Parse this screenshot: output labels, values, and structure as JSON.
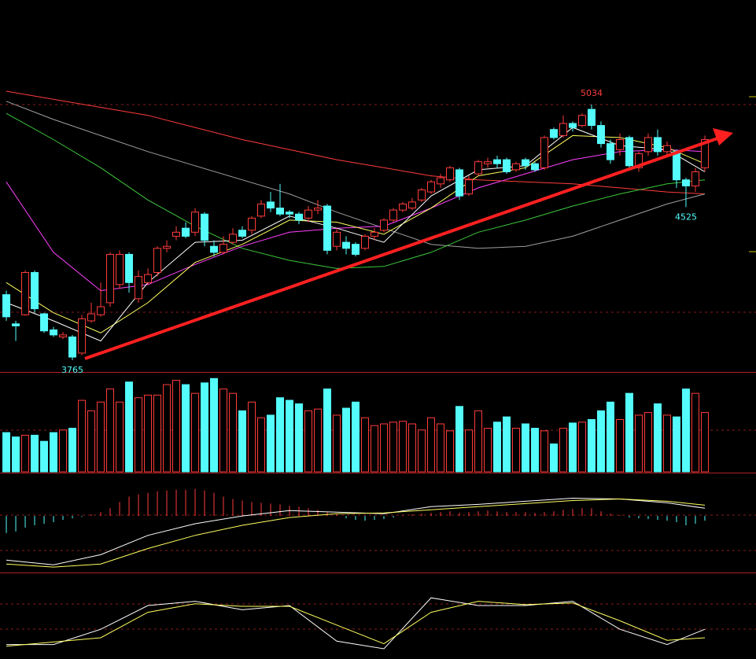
{
  "chart_data": {
    "type": "candlestick",
    "xlim": [
      -0.67,
      79.42
    ],
    "x": [
      0,
      1,
      2,
      3,
      4,
      5,
      6,
      7,
      8,
      9,
      10,
      11,
      12,
      13,
      14,
      15,
      16,
      17,
      18,
      19,
      20,
      21,
      22,
      23,
      24,
      25,
      26,
      27,
      28,
      29,
      30,
      31,
      32,
      33,
      34,
      35,
      36,
      37,
      38,
      39,
      40,
      41,
      42,
      43,
      44,
      45,
      46,
      47,
      48,
      49,
      50,
      51,
      52,
      53,
      54,
      55,
      56,
      57,
      58,
      59,
      60,
      61,
      62,
      63,
      64,
      65,
      66,
      67,
      68,
      69,
      70,
      71,
      72,
      73,
      74
    ],
    "ylim": [
      3710,
      5553
    ],
    "open": [
      4090,
      3945,
      3990,
      4200,
      3995,
      3915,
      3880,
      3880,
      3800,
      3960,
      3990,
      4050,
      4140,
      4290,
      4070,
      4150,
      4200,
      4320,
      4380,
      4420,
      4400,
      4490,
      4330,
      4300,
      4350,
      4410,
      4410,
      4480,
      4550,
      4520,
      4500,
      4490,
      4470,
      4510,
      4530,
      4330,
      4350,
      4340,
      4320,
      4380,
      4410,
      4460,
      4510,
      4520,
      4560,
      4600,
      4640,
      4660,
      4710,
      4590,
      4690,
      4740,
      4760,
      4760,
      4710,
      4760,
      4740,
      4720,
      4910,
      4880,
      4940,
      4930,
      5010,
      4930,
      4840,
      4810,
      4870,
      4720,
      4800,
      4870,
      4800,
      4800,
      4660,
      4630,
      4720
    ],
    "high": [
      4110,
      3960,
      4210,
      4210,
      4000,
      3930,
      3905,
      3890,
      3990,
      4050,
      4150,
      4300,
      4310,
      4300,
      4210,
      4220,
      4330,
      4360,
      4430,
      4450,
      4520,
      4500,
      4360,
      4380,
      4420,
      4430,
      4480,
      4560,
      4600,
      4640,
      4510,
      4500,
      4530,
      4560,
      4540,
      4420,
      4380,
      4350,
      4390,
      4420,
      4470,
      4520,
      4550,
      4570,
      4620,
      4660,
      4690,
      4730,
      4720,
      4680,
      4760,
      4770,
      4780,
      4770,
      4750,
      4770,
      4750,
      4880,
      4920,
      4980,
      4950,
      4990,
      5034,
      4950,
      4860,
      4890,
      4880,
      4800,
      4890,
      4910,
      4850,
      4810,
      4670,
      4720,
      4880
    ],
    "low": [
      3960,
      3860,
      3985,
      4000,
      3900,
      3880,
      3870,
      3765,
      3790,
      3950,
      3980,
      4030,
      4120,
      4100,
      4050,
      4140,
      4180,
      4300,
      4360,
      4370,
      4380,
      4330,
      4280,
      4290,
      4340,
      4370,
      4390,
      4470,
      4500,
      4480,
      4470,
      4440,
      4450,
      4490,
      4290,
      4310,
      4290,
      4280,
      4310,
      4360,
      4400,
      4450,
      4500,
      4510,
      4550,
      4590,
      4620,
      4650,
      4560,
      4580,
      4680,
      4720,
      4720,
      4690,
      4700,
      4710,
      4700,
      4710,
      4860,
      4870,
      4900,
      4920,
      4910,
      4820,
      4740,
      4780,
      4710,
      4700,
      4780,
      4780,
      4780,
      4620,
      4525,
      4600,
      4700
    ],
    "close": [
      3980,
      3935,
      4200,
      4020,
      3910,
      3890,
      3890,
      3780,
      3970,
      3995,
      4030,
      4290,
      4290,
      4150,
      4180,
      4190,
      4320,
      4330,
      4400,
      4380,
      4500,
      4360,
      4300,
      4340,
      4390,
      4380,
      4470,
      4540,
      4520,
      4490,
      4490,
      4460,
      4510,
      4520,
      4310,
      4400,
      4320,
      4290,
      4380,
      4400,
      4460,
      4510,
      4540,
      4550,
      4610,
      4650,
      4670,
      4720,
      4580,
      4660,
      4750,
      4750,
      4740,
      4700,
      4740,
      4730,
      4710,
      4870,
      4870,
      4940,
      4920,
      4980,
      4930,
      4840,
      4760,
      4860,
      4730,
      4790,
      4870,
      4800,
      4830,
      4660,
      4630,
      4700,
      4860
    ],
    "up_color": "#ff3c3c",
    "down_color": "#54fcfc",
    "annotations": [
      5034,
      3765,
      4525
    ],
    "series": [
      {
        "color": "#ff3c3c",
        "x": [
          0,
          5,
          10,
          15,
          20,
          25,
          30,
          35,
          40,
          45,
          50,
          55,
          60,
          65,
          70,
          74
        ],
        "values": [
          5100,
          5060,
          5020,
          4980,
          4920,
          4860,
          4810,
          4760,
          4720,
          4680,
          4660,
          4650,
          4640,
          4620,
          4600,
          4590
        ]
      },
      {
        "color": "#a0a0a0",
        "x": [
          0,
          5,
          10,
          15,
          20,
          25,
          30,
          35,
          40,
          45,
          50,
          55,
          60,
          65,
          70,
          74
        ],
        "values": [
          5050,
          4960,
          4880,
          4800,
          4730,
          4660,
          4590,
          4500,
          4420,
          4340,
          4320,
          4330,
          4380,
          4460,
          4540,
          4590
        ]
      },
      {
        "color": "#3cc83c",
        "x": [
          0,
          5,
          10,
          15,
          20,
          25,
          30,
          35,
          40,
          45,
          50,
          55,
          60,
          65,
          70,
          74
        ],
        "values": [
          4990,
          4860,
          4720,
          4560,
          4430,
          4320,
          4260,
          4220,
          4230,
          4300,
          4400,
          4460,
          4530,
          4590,
          4640,
          4660
        ]
      },
      {
        "color": "#ff40ff",
        "x": [
          0,
          5,
          10,
          15,
          20,
          25,
          30,
          35,
          40,
          45,
          50,
          55,
          60,
          65,
          70,
          74
        ],
        "values": [
          4650,
          4300,
          4110,
          4140,
          4240,
          4330,
          4400,
          4420,
          4430,
          4520,
          4620,
          4690,
          4760,
          4800,
          4810,
          4800
        ]
      },
      {
        "color": "#ffff60",
        "x": [
          0,
          5,
          10,
          15,
          20,
          25,
          30,
          35,
          40,
          45,
          50,
          55,
          60,
          65,
          70,
          74
        ],
        "values": [
          4150,
          4000,
          3900,
          4050,
          4250,
          4340,
          4460,
          4450,
          4390,
          4520,
          4680,
          4720,
          4880,
          4870,
          4820,
          4740
        ]
      },
      {
        "color": "#ffffff",
        "x": [
          0,
          5,
          10,
          15,
          20,
          25,
          30,
          35,
          40,
          45,
          50,
          55,
          60,
          65,
          70,
          74
        ],
        "values": [
          4050,
          3960,
          3860,
          4150,
          4350,
          4360,
          4480,
          4420,
          4350,
          4580,
          4710,
          4730,
          4920,
          4830,
          4810,
          4700
        ]
      }
    ],
    "volume": {
      "type": "bar",
      "ylim": [
        0,
        110
      ],
      "values": [
        45,
        40,
        42,
        42,
        35,
        45,
        48,
        50,
        82,
        70,
        80,
        95,
        80,
        103,
        85,
        88,
        88,
        100,
        105,
        100,
        90,
        102,
        107,
        95,
        90,
        70,
        80,
        62,
        65,
        85,
        82,
        78,
        70,
        72,
        95,
        65,
        73,
        80,
        62,
        53,
        55,
        57,
        58,
        55,
        48,
        62,
        55,
        47,
        75,
        48,
        70,
        50,
        57,
        63,
        50,
        55,
        50,
        47,
        32,
        50,
        56,
        57,
        60,
        70,
        80,
        60,
        90,
        65,
        68,
        78,
        65,
        63,
        95,
        90,
        68
      ]
    },
    "macd": {
      "type": "macd",
      "ylim": [
        -73,
        55
      ],
      "histogram": [
        -22,
        -20,
        -15,
        -12,
        -10,
        -8,
        -5,
        -3,
        -1,
        2,
        5,
        10,
        18,
        25,
        28,
        30,
        32,
        33,
        34,
        34,
        35,
        33,
        30,
        25,
        22,
        20,
        18,
        17,
        16,
        15,
        13,
        12,
        10,
        8,
        5,
        2,
        -3,
        -5,
        -6,
        -5,
        -4,
        -2,
        1,
        2,
        3,
        4,
        5,
        6,
        4,
        5,
        6,
        7,
        6,
        5,
        5,
        5,
        4,
        5,
        6,
        8,
        9,
        10,
        10,
        6,
        3,
        1,
        -2,
        -3,
        -4,
        -5,
        -6,
        -8,
        -12,
        -10,
        -6
      ],
      "series": [
        {
          "color": "#ffffff",
          "x": [
            0,
            5,
            10,
            15,
            20,
            25,
            30,
            35,
            40,
            45,
            50,
            55,
            60,
            65,
            70,
            74
          ],
          "values": [
            -57,
            -63,
            -50,
            -25,
            -10,
            0,
            7,
            5,
            3,
            12,
            15,
            19,
            23,
            22,
            17,
            10
          ]
        },
        {
          "color": "#ffff60",
          "x": [
            0,
            5,
            10,
            15,
            20,
            25,
            30,
            35,
            40,
            45,
            50,
            55,
            60,
            65,
            70,
            74
          ],
          "values": [
            -62,
            -66,
            -62,
            -42,
            -25,
            -12,
            -2,
            3,
            4,
            8,
            12,
            16,
            20,
            22,
            19,
            14
          ]
        }
      ]
    },
    "kdj": {
      "type": "line",
      "ylim": [
        0,
        100
      ],
      "series": [
        {
          "color": "#ffffff",
          "x": [
            0,
            5,
            10,
            15,
            20,
            25,
            30,
            35,
            40,
            45,
            50,
            55,
            60,
            65,
            70,
            74
          ],
          "values": [
            17,
            17,
            35,
            63,
            68,
            58,
            63,
            21,
            12,
            72,
            63,
            63,
            68,
            35,
            17,
            35
          ]
        },
        {
          "color": "#ffff60",
          "x": [
            0,
            5,
            10,
            15,
            20,
            25,
            30,
            35,
            40,
            45,
            50,
            55,
            60,
            65,
            70,
            74
          ],
          "values": [
            15,
            20,
            25,
            55,
            65,
            62,
            62,
            40,
            18,
            55,
            68,
            64,
            66,
            45,
            22,
            25
          ]
        }
      ]
    }
  }
}
